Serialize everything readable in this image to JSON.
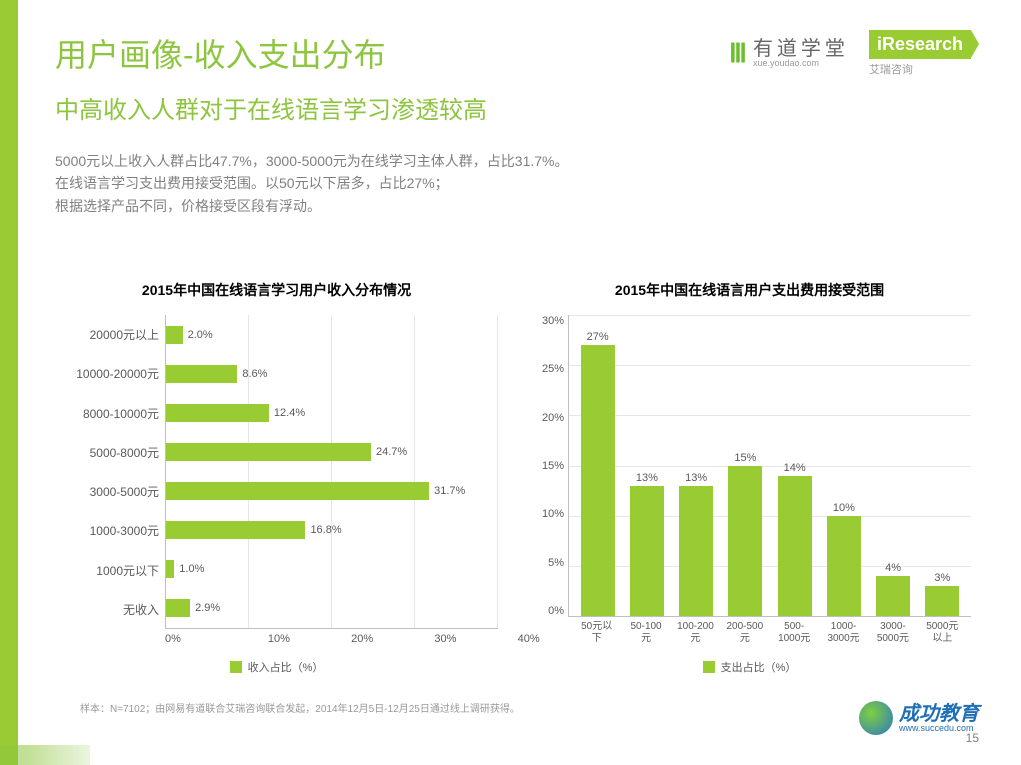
{
  "colors": {
    "accent": "#99cc33",
    "title": "#8ec53f",
    "subtitle": "#8ec53f",
    "body_text": "#808080",
    "axis_text": "#595959",
    "grid": "#e6e6e6",
    "axis_line": "#bfbfbf",
    "bar": "#99cc33"
  },
  "title": "用户画像-收入支出分布",
  "subtitle": "中高收入人群对于在线语言学习渗透较高",
  "body_line1": "5000元以上收入人群占比47.7%，3000-5000元为在线学习主体人群，占比31.7%。",
  "body_line2": "在线语言学习支出费用接受范围。以50元以下居多，占比27%；",
  "body_line3": "根据选择产品不同，价格接受区段有浮动。",
  "logos": {
    "youdao_main": "有道学堂",
    "youdao_sub": "xue.youdao.com",
    "iresearch_main": "iResearch",
    "iresearch_sub": "艾瑞咨询"
  },
  "left_chart": {
    "type": "bar-horizontal",
    "title": "2015年中国在线语言学习用户收入分布情况",
    "categories": [
      "20000元以上",
      "10000-20000元",
      "8000-10000元",
      "5000-8000元",
      "3000-5000元",
      "1000-3000元",
      "1000元以下",
      "无收入"
    ],
    "values": [
      2.0,
      8.6,
      12.4,
      24.7,
      31.7,
      16.8,
      1.0,
      2.9
    ],
    "value_labels": [
      "2.0%",
      "8.6%",
      "12.4%",
      "24.7%",
      "31.7%",
      "16.8%",
      "1.0%",
      "2.9%"
    ],
    "xlim": [
      0,
      40
    ],
    "xtick_step": 10,
    "xtick_labels": [
      "0%",
      "10%",
      "20%",
      "30%",
      "40%"
    ],
    "bar_color": "#99cc33",
    "legend": "收入占比（%）",
    "title_fontsize": 14,
    "label_fontsize": 12
  },
  "right_chart": {
    "type": "bar-vertical",
    "title": "2015年中国在线语言用户支出费用接受范围",
    "categories": [
      "50元以下",
      "50-100元",
      "100-200元",
      "200-500元",
      "500-1000元",
      "1000-3000元",
      "3000-5000元",
      "5000元以上"
    ],
    "values": [
      27,
      13,
      13,
      15,
      14,
      10,
      4,
      3
    ],
    "value_labels": [
      "27%",
      "13%",
      "13%",
      "15%",
      "14%",
      "10%",
      "4%",
      "3%"
    ],
    "ylim": [
      0,
      30
    ],
    "ytick_step": 5,
    "ytick_labels": [
      "30%",
      "25%",
      "20%",
      "15%",
      "10%",
      "5%",
      "0%"
    ],
    "bar_color": "#99cc33",
    "legend": "支出占比（%）",
    "title_fontsize": 14,
    "label_fontsize": 10
  },
  "footnote": "样本：N=7102；由网易有道联合艾瑞咨询联合发起，2014年12月5日-12月25日通过线上调研获得。",
  "page_num": "15",
  "succedu": {
    "main": "成功教育",
    "sub": "www.succedu.com"
  }
}
